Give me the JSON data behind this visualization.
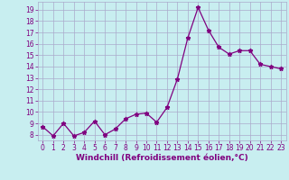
{
  "x": [
    0,
    1,
    2,
    3,
    4,
    5,
    6,
    7,
    8,
    9,
    10,
    11,
    12,
    13,
    14,
    15,
    16,
    17,
    18,
    19,
    20,
    21,
    22,
    23
  ],
  "y": [
    8.7,
    7.9,
    9.0,
    7.9,
    8.2,
    9.2,
    8.0,
    8.5,
    9.4,
    9.8,
    9.9,
    9.1,
    10.4,
    12.9,
    16.5,
    19.2,
    17.2,
    15.7,
    15.1,
    15.4,
    15.4,
    14.2,
    14.0,
    13.8
  ],
  "line_color": "#800080",
  "marker": "*",
  "marker_size": 3.5,
  "bg_color": "#c8eef0",
  "grid_color": "#aaaacc",
  "xlabel": "Windchill (Refroidissement éolien,°C)",
  "xlabel_color": "#800080",
  "xlabel_fontsize": 6.5,
  "tick_color": "#800080",
  "tick_fontsize": 5.5,
  "ylim": [
    7.5,
    19.7
  ],
  "xlim": [
    -0.5,
    23.5
  ],
  "yticks": [
    8,
    9,
    10,
    11,
    12,
    13,
    14,
    15,
    16,
    17,
    18,
    19
  ],
  "xticks": [
    0,
    1,
    2,
    3,
    4,
    5,
    6,
    7,
    8,
    9,
    10,
    11,
    12,
    13,
    14,
    15,
    16,
    17,
    18,
    19,
    20,
    21,
    22,
    23
  ]
}
